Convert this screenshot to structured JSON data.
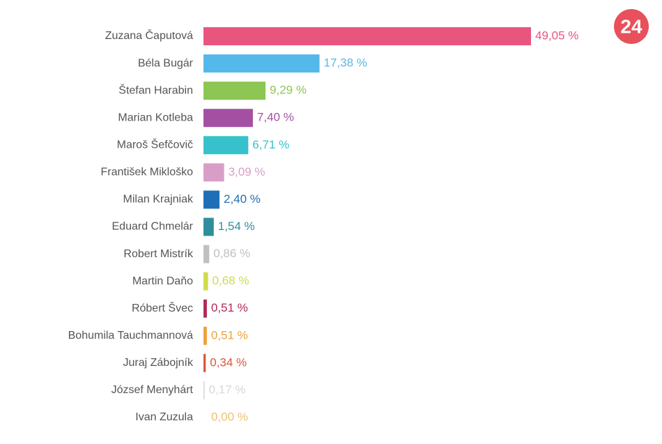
{
  "logo": "24",
  "chart_data": {
    "type": "bar",
    "orientation": "horizontal",
    "categories": [
      "Zuzana Čaputová",
      "Béla Bugár",
      "Štefan Harabin",
      "Marian Kotleba",
      "Maroš Šefčovič",
      "František Mikloško",
      "Milan Krajniak",
      "Eduard Chmelár",
      "Robert Mistrík",
      "Martin Daňo",
      "Róbert Švec",
      "Bohumila Tauchmannová",
      "Juraj Zábojník",
      "József Menyhárt",
      "Ivan Zuzula"
    ],
    "values": [
      49.05,
      17.38,
      9.29,
      7.4,
      6.71,
      3.09,
      2.4,
      1.54,
      0.86,
      0.68,
      0.51,
      0.51,
      0.34,
      0.17,
      0.0
    ],
    "value_labels": [
      "49,05 %",
      "17,38 %",
      "9,29 %",
      "7,40 %",
      "6,71 %",
      "3,09 %",
      "2,40 %",
      "1,54 %",
      "0,86 %",
      "0,68 %",
      "0,51 %",
      "0,51 %",
      "0,34 %",
      "0,17 %",
      "0,00 %"
    ],
    "colors": [
      "#e8557f",
      "#55b8ea",
      "#8dc653",
      "#a350a3",
      "#36c1cb",
      "#d99ec8",
      "#1e6fb5",
      "#2d8f9a",
      "#c0c0c0",
      "#cfdc4a",
      "#b22a55",
      "#eea23a",
      "#d8583a",
      "#d8d8d8",
      "#f0c070"
    ]
  }
}
